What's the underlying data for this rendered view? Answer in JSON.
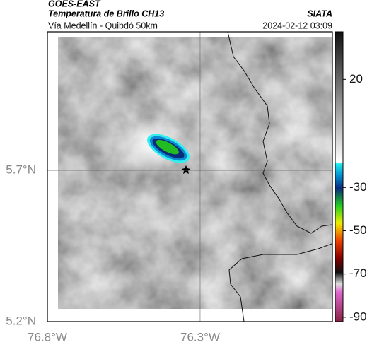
{
  "header": {
    "title": "GOES-EAST",
    "subtitle": "Temperatura de Brillo CH13",
    "region": "Vía Medellín - Quibdó 50km",
    "source": "SIATA",
    "datetime": "2024-02-12 03:09"
  },
  "map": {
    "xlim": [
      -76.8,
      -75.867
    ],
    "ylim": [
      5.2,
      6.158
    ],
    "lon_ticks": [
      {
        "value": -76.8,
        "label": "76.8°W"
      },
      {
        "value": -76.3,
        "label": "76.3°W"
      }
    ],
    "lat_ticks": [
      {
        "value": 5.7,
        "label": "5.7°N"
      },
      {
        "value": 5.2,
        "label": "5.2°N"
      }
    ]
  },
  "colorbar": {
    "lim": [
      42,
      -92
    ],
    "ticks": [
      20,
      -30,
      -50,
      -70,
      -90
    ]
  }
}
